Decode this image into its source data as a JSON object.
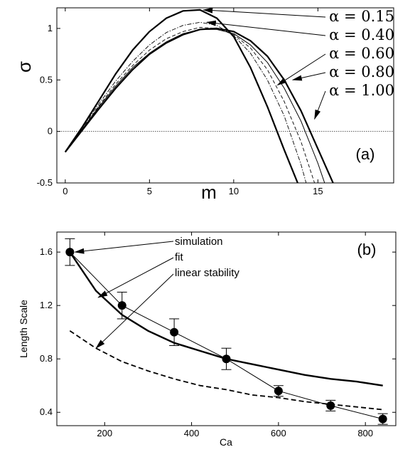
{
  "chart_data": [
    {
      "panel": "(a)",
      "type": "line",
      "xlabel": "m",
      "ylabel": "σ",
      "xlim": [
        -0.5,
        19.5
      ],
      "ylim": [
        -0.5,
        1.2
      ],
      "xticks": [
        0,
        5,
        10,
        15
      ],
      "yticks": [
        -0.5,
        0,
        0.5,
        1
      ],
      "grid": false,
      "zero_line": true,
      "curve_style": [
        "solid-thick",
        "dash-dot",
        "dashed",
        "solid-thin",
        "solid-thick"
      ],
      "series": [
        {
          "name": "α = 0.15",
          "x": [
            0,
            1,
            2,
            3,
            4,
            5,
            6,
            7,
            8,
            9,
            10,
            11,
            12,
            13,
            13.8
          ],
          "y": [
            -0.2,
            0.04,
            0.3,
            0.56,
            0.79,
            0.97,
            1.1,
            1.17,
            1.18,
            1.1,
            0.92,
            0.62,
            0.24,
            -0.18,
            -0.5
          ]
        },
        {
          "name": "α = 0.40",
          "x": [
            0,
            1,
            2,
            3,
            4,
            5,
            6,
            7,
            8,
            9,
            10,
            11,
            12,
            13,
            14,
            14.3
          ],
          "y": [
            -0.2,
            0.03,
            0.27,
            0.49,
            0.68,
            0.84,
            0.96,
            1.03,
            1.06,
            1.03,
            0.93,
            0.76,
            0.5,
            0.15,
            -0.32,
            -0.5
          ]
        },
        {
          "name": "α = 0.60",
          "x": [
            0,
            1,
            2,
            3,
            4,
            5,
            6,
            7,
            8,
            9,
            10,
            11,
            12,
            13,
            14,
            14.8
          ],
          "y": [
            -0.2,
            0.02,
            0.25,
            0.46,
            0.64,
            0.79,
            0.9,
            0.97,
            1.01,
            1.0,
            0.94,
            0.81,
            0.6,
            0.29,
            -0.1,
            -0.5
          ]
        },
        {
          "name": "α = 0.80",
          "x": [
            0,
            1,
            2,
            3,
            4,
            5,
            6,
            7,
            8,
            9,
            10,
            11,
            12,
            13,
            14,
            15,
            15.4
          ],
          "y": [
            -0.2,
            0.02,
            0.24,
            0.44,
            0.62,
            0.76,
            0.87,
            0.95,
            0.99,
            0.99,
            0.95,
            0.84,
            0.67,
            0.42,
            0.1,
            -0.31,
            -0.5
          ]
        },
        {
          "name": "α = 1.00",
          "x": [
            0,
            1,
            2,
            3,
            4,
            5,
            6,
            7,
            8,
            9,
            10,
            11,
            12,
            13,
            14,
            15,
            15.9
          ],
          "y": [
            -0.2,
            0.01,
            0.22,
            0.42,
            0.6,
            0.75,
            0.86,
            0.94,
            0.99,
            1.0,
            0.97,
            0.88,
            0.73,
            0.5,
            0.2,
            -0.17,
            -0.5
          ]
        }
      ],
      "panel_label": "(a)"
    },
    {
      "panel": "(b)",
      "type": "line",
      "xlabel": "Ca",
      "ylabel": "Length Scale",
      "xlim": [
        90,
        870
      ],
      "ylim": [
        0.3,
        1.75
      ],
      "xticks": [
        200,
        400,
        600,
        800
      ],
      "yticks": [
        0.4,
        0.8,
        1.2,
        1.6
      ],
      "grid": false,
      "series": [
        {
          "name": "simulation",
          "style": "markers-with-errorbars",
          "x": [
            120,
            240,
            360,
            480,
            600,
            720,
            840
          ],
          "y": [
            1.6,
            1.2,
            1.0,
            0.8,
            0.56,
            0.45,
            0.35
          ],
          "error": [
            0.1,
            0.1,
            0.1,
            0.08,
            0.04,
            0.04,
            0.04
          ]
        },
        {
          "name": "fit",
          "style": "solid-thick",
          "x": [
            120,
            180,
            240,
            300,
            360,
            420,
            480,
            540,
            600,
            660,
            720,
            780,
            840
          ],
          "y": [
            1.6,
            1.31,
            1.13,
            1.01,
            0.92,
            0.86,
            0.8,
            0.76,
            0.72,
            0.68,
            0.65,
            0.63,
            0.6
          ]
        },
        {
          "name": "linear stability",
          "style": "dashed",
          "x": [
            120,
            180,
            240,
            300,
            360,
            420,
            480,
            540,
            600,
            660,
            720,
            780,
            840
          ],
          "y": [
            1.01,
            0.88,
            0.78,
            0.71,
            0.65,
            0.6,
            0.57,
            0.53,
            0.51,
            0.48,
            0.46,
            0.44,
            0.42
          ]
        }
      ],
      "annotations": [
        "simulation",
        "fit",
        "linear stability"
      ],
      "panel_label": "(b)"
    }
  ]
}
